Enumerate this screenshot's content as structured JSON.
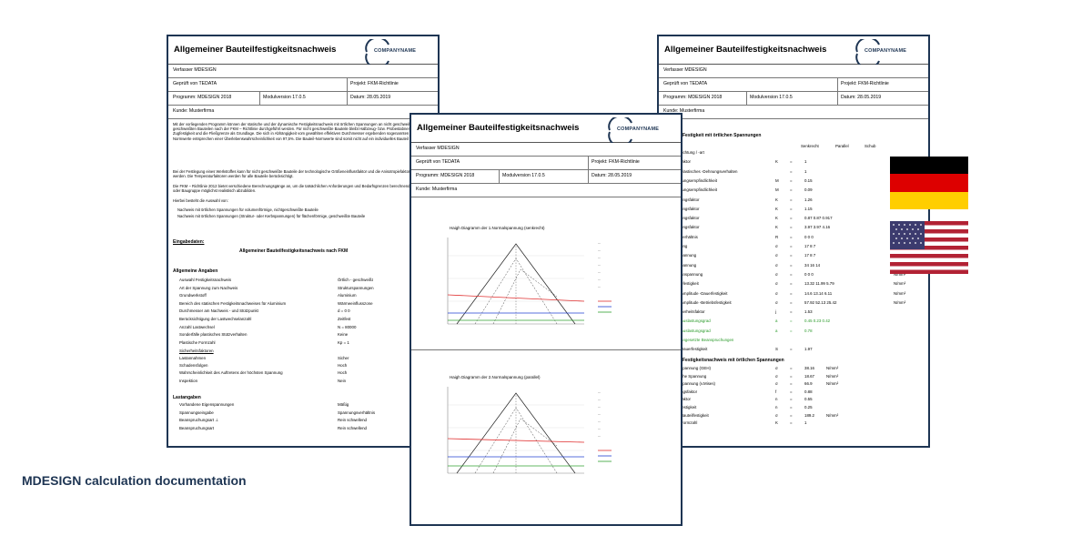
{
  "caption": "MDESIGN calculation documentation",
  "doc_title": "Allgemeiner Bauteilfestigkeitsnachweis",
  "company_logo": "COMPANYNAME",
  "verfasser": "Verfasser MDESIGN",
  "geprueft": "Geprüft von TEDATA",
  "projekt": "Projekt: FKM-Richtlinie",
  "programm": "Programm: MDESIGN 2018",
  "modulversion": "Modulversion 17.0.5",
  "datum": "Datum: 28.05.2019",
  "kunde": "Kunde: Musterfirma",
  "left_page": {
    "intro1": "Mit der vorliegenden Programm können der statische und der dynamische Festigkeitsnachweis mit örtlichen Spannungen an nicht geschweißten und geschweißten Bauteilen nach der FKM – Richtlinie durchgeführt werden. Für nicht geschweißte Bauteile bleibt Halbzeug- bzw. Probestabnennwerte der Zugfestigkeit und die Fließgrenze als Grundlage. Die sich in Abhängigkeit vom gewählten effektiven Durchmesser ergebenden sogenannten Bauteil-Normwerte entsprechen einer Überlebenswahrscheinlichkeit von 97,5%. Die Bauteil-Normwerte sind somit nicht auf ein individuelles Bauteil beschränkt.",
    "intro2": "Bei der Festlegung eines Werkstoffes kann für nicht geschweißte Bauteile der technologische Größeneinflussfaktor und die Anisotropiefaktor berücksichtigt werden. Die Temperaturfaktoren werden für alle Bauteile berücksichtigt.",
    "intro3": "Die FKM – Richtlinie 2012 bietet verschiedene Berechnungsgänge an, um die tatsächlichen Anforderungen und Bedarfsgrenzen berechnender Bauteile oder Baugruppe möglichst realistisch abzubilden.",
    "intro4": "Hierbei besteht die Auswahl von:",
    "bullet1": "Nachweis mit örtlichen Spannungen für volumenförmige, nichtgeschweißte Bauteile",
    "bullet2": "Nachweis mit örtlichen Spannungen (Struktur- oder Kerbspannungen) für flächenförmige, geschweißte Bauteile",
    "eingabedaten": "Eingabedaten:",
    "center_title": "Allgemeiner Bauteilfestigkeitsnachweis nach FKM",
    "allg_heading": "Allgemeine Angaben",
    "rows": [
      [
        "Auswahl Festigkeitsnachweis",
        "Örtlich - geschweißt"
      ],
      [
        "Art der Spannung zum Nachweis",
        "Strukturspannungen"
      ],
      [
        "Grundwerkstoff",
        "Aluminium"
      ],
      [
        "Bereich des statischen Festigkeitsnachweises für Aluminium",
        "Wärmeeinflusszone"
      ],
      [
        "Durchmesser am Nachweis - und Stützpunkt",
        "d = 0          0"
      ],
      [
        "Berücksichtigung der Lastwechselanzahl",
        "Zeitfest"
      ],
      [
        "Anzahl Lastwechsel",
        "N = 80000"
      ],
      [
        "Sonderfälle plastisches Stützverhalten",
        "Keine"
      ],
      [
        "Plastische Formzahl",
        "Kp = 1"
      ]
    ],
    "sicherheit_heading": "Sicherheitsfaktoren",
    "sicherheit_rows": [
      [
        "Lastannahmen",
        "Sicher"
      ],
      [
        "Schadensfolgen",
        "Hoch"
      ],
      [
        "Wahrscheinlichkeit des Auftretens der höchsten Spannung",
        "Hoch"
      ],
      [
        "Inspektion",
        "Nein"
      ]
    ],
    "last_heading": "Lastangaben",
    "last_rows": [
      [
        "Vorhandene Eigenspannungen",
        "Mäßig"
      ],
      [
        "Spannungseingabe",
        "Spannungsverhältnis"
      ],
      [
        "Beanspruchungsart ⊥",
        "Rein schwellend"
      ],
      [
        "Beanspruchungsart",
        "Rein schwellend"
      ]
    ]
  },
  "center_page": {
    "diagram1_title": "Haigh Diagramm der 1.Normalspannung (senkrecht)",
    "diagram2_title": "Haigh Diagramm der 2.Normalspannung (parallel)"
  },
  "right_page": {
    "section1": "Festigkeit mit örtlichen Spannungen",
    "col_headers": [
      "Senkrecht",
      "Parallel",
      "Schub"
    ],
    "rows": [
      [
        "richtung / -art",
        "",
        "",
        "",
        ""
      ],
      [
        "faktor",
        "K",
        "=",
        "1",
        ""
      ],
      [
        "elastisches -Dehnungsverhalten",
        "",
        "=",
        "1",
        ""
      ],
      [
        "rungsempfindlichkeit",
        "M",
        "=",
        "0.15",
        ""
      ],
      [
        "rungsempfindlichkeit",
        "M",
        "=",
        "0.09",
        ""
      ],
      [
        "ungsfaktor",
        "K",
        "=",
        "1.26",
        ""
      ],
      [
        "ungsfaktor",
        "K",
        "=",
        "1.15",
        ""
      ],
      [
        "ungsfaktor",
        "K",
        "=",
        "0.87   0.87   0.917",
        ""
      ],
      [
        "ungsfaktor",
        "K",
        "=",
        "3.97   3.97   4.16",
        ""
      ],
      [
        "verhältnis",
        "R",
        "=",
        "0      0      0",
        ""
      ],
      [
        "ung",
        "σ",
        "=",
        "17     8      7",
        "N/mm²"
      ],
      [
        "pannung",
        "σ",
        "=",
        "17     8      7",
        "N/mm²"
      ],
      [
        "pannung",
        "σ",
        "=",
        "34     16     14",
        "N/mm²"
      ],
      [
        "anspannung",
        "σ",
        "=",
        "0      0      0",
        "N/mm²"
      ],
      [
        "efestigkeit",
        "σ",
        "=",
        "13.32  11.99  5.79",
        "N/mm²"
      ],
      [
        "Amplitude -Dauerfestigkeit",
        "σ",
        "=",
        "14.6   13.14  6.11",
        "N/mm²"
      ],
      [
        "Amplitude -Betriebsfestigkeit",
        "σ",
        "=",
        "57.92  52.13  25.42",
        "N/mm²"
      ],
      [
        "nerheitsfaktor",
        "j",
        "=",
        "1.53",
        ""
      ],
      [
        "Auslastungsgrad",
        "a",
        "=",
        "0.45   0.23   0.42",
        ""
      ],
      [
        "Auslastungsgrad",
        "a",
        "=",
        "0.78",
        ""
      ],
      [
        "angesetzte Beanspruchungen",
        "",
        "",
        "",
        ""
      ],
      [
        "Dauerfestigkeit",
        "S",
        "=",
        "1.97",
        ""
      ]
    ],
    "section2": "Festigkeitsnachweis mit örtlichen Spannungen",
    "rows2": [
      [
        "spannung (GEH)",
        "σ",
        "=",
        "38.16",
        "N/mm²"
      ],
      [
        "che Spannung",
        "σ",
        "=",
        "18.67",
        "N/mm²"
      ],
      [
        "spannung (v.Mises)",
        "σ",
        "=",
        "66.9",
        "N/mm²"
      ],
      [
        "ngsfaktor",
        "f",
        "=",
        "0.88",
        ""
      ],
      [
        "faktor",
        "n",
        "=",
        "0.55",
        ""
      ],
      [
        "festigkeit",
        "n",
        "=",
        "0.25",
        ""
      ],
      [
        "Bauteilfestigkeit",
        "σ",
        "=",
        "189.2",
        "N/mm²"
      ],
      [
        "Formzahl",
        "K",
        "=",
        "1",
        ""
      ]
    ]
  },
  "colors": {
    "accent": "#1e3553",
    "green": "#2a9a2a"
  }
}
